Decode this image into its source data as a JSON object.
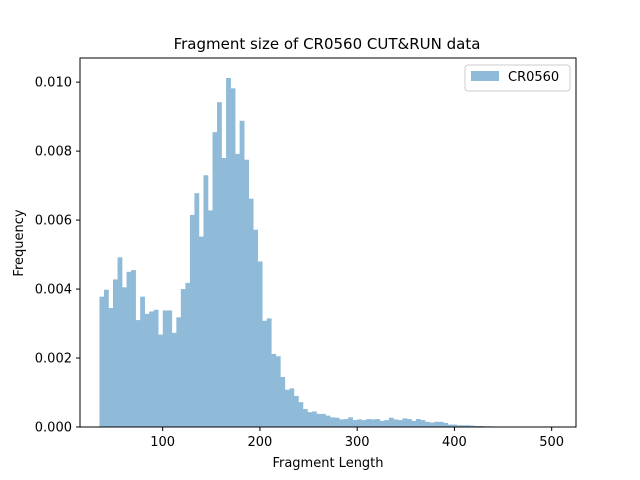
{
  "chart_data": {
    "type": "bar",
    "title": "Fragment size of CR0560 CUT&RUN data",
    "xlabel": "Fragment Length",
    "ylabel": "Frequency",
    "xlim": [
      15,
      525
    ],
    "ylim": [
      0,
      0.0107
    ],
    "xticks": [
      100,
      200,
      300,
      400,
      500
    ],
    "yticks": [
      0.0,
      0.002,
      0.004,
      0.006,
      0.008,
      0.01
    ],
    "ytick_labels": [
      "0.000",
      "0.002",
      "0.004",
      "0.006",
      "0.008",
      "0.010"
    ],
    "legend_position": "top-right",
    "grid": false,
    "series": [
      {
        "name": "CR0560",
        "color": "#8fbad8",
        "bin_start": 35,
        "bin_width": 4.65,
        "values": [
          0.00378,
          0.00398,
          0.00345,
          0.00428,
          0.00492,
          0.00405,
          0.0045,
          0.00455,
          0.0031,
          0.00378,
          0.00328,
          0.00335,
          0.0034,
          0.00268,
          0.00338,
          0.00338,
          0.00273,
          0.00318,
          0.004,
          0.00418,
          0.00615,
          0.00678,
          0.00552,
          0.0073,
          0.00628,
          0.00855,
          0.00942,
          0.0078,
          0.01012,
          0.00982,
          0.00792,
          0.00888,
          0.00775,
          0.00662,
          0.00572,
          0.0048,
          0.00308,
          0.00315,
          0.00212,
          0.00205,
          0.00145,
          0.00108,
          0.00112,
          0.0009,
          0.00072,
          0.00052,
          0.00043,
          0.00045,
          0.00038,
          0.00038,
          0.00033,
          0.00028,
          0.00027,
          0.00022,
          0.00023,
          0.00028,
          0.0002,
          0.00022,
          0.0002,
          0.00023,
          0.00022,
          0.00023,
          0.00018,
          0.0002,
          0.00027,
          0.00022,
          0.0002,
          0.00025,
          0.00023,
          0.00018,
          0.00023,
          0.0002,
          0.00015,
          0.00013,
          0.00015,
          0.00015,
          0.00012,
          7e-05,
          7e-05,
          5e-05,
          5e-05,
          5e-05,
          4e-05,
          3e-05,
          3e-05,
          2e-05,
          2e-05,
          1e-05,
          1e-05,
          1e-05,
          1e-05,
          1e-05,
          1e-05,
          1e-05,
          1e-05,
          1e-05,
          1e-05,
          1e-05,
          1e-05,
          1e-05
        ]
      }
    ]
  }
}
